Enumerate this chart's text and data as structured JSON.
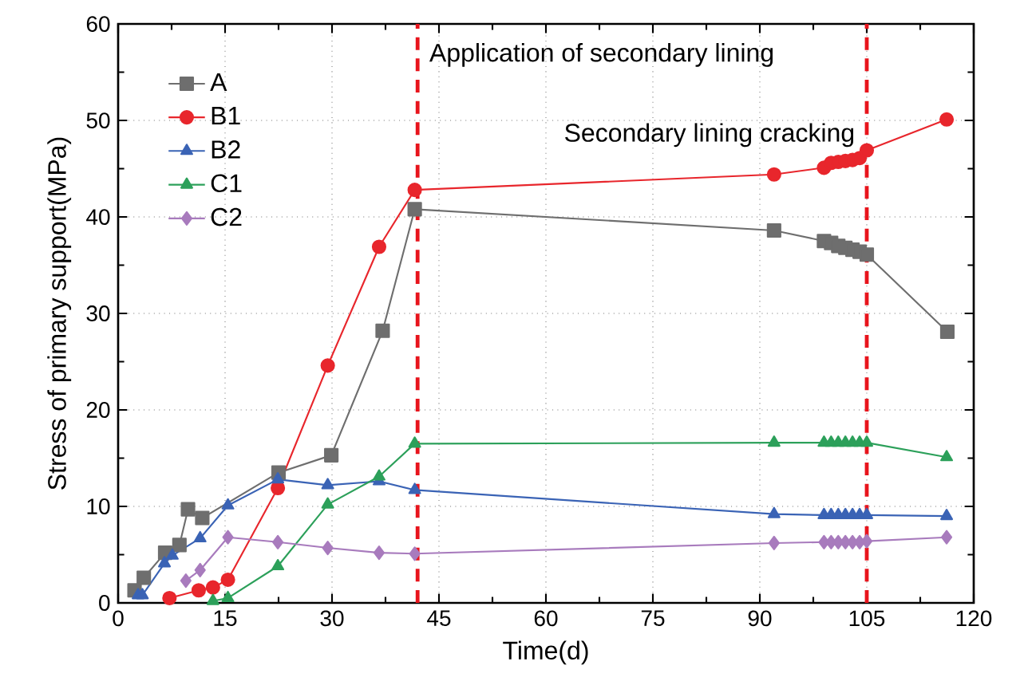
{
  "chart_data": {
    "type": "line",
    "xlabel": "Time(d)",
    "ylabel": "Stress of primary support(MPa)",
    "xlim": [
      0,
      120
    ],
    "xticks": [
      0,
      15,
      30,
      45,
      60,
      75,
      90,
      105,
      120
    ],
    "ylim": [
      0,
      60
    ],
    "yticks": [
      0,
      10,
      20,
      30,
      40,
      50,
      60
    ],
    "grid": true,
    "legend": "top left",
    "line_style": "solid",
    "series": [
      {
        "name": "A",
        "color": "#6e6e6e",
        "marker": "square",
        "x": [
          2.3,
          3.6,
          6.6,
          8.6,
          9.8,
          11.8,
          22.5,
          29.9,
          37.1,
          41.6,
          92,
          99,
          100,
          101,
          102,
          103,
          104,
          105,
          116.3
        ],
        "values": [
          1.3,
          2.6,
          5.2,
          6.0,
          9.7,
          8.8,
          13.5,
          15.3,
          28.2,
          40.8,
          38.6,
          37.5,
          37.3,
          37.0,
          36.8,
          36.6,
          36.4,
          36.1,
          28.1
        ]
      },
      {
        "name": "B1",
        "color": "#e8262c",
        "marker": "circle",
        "x": [
          7.2,
          11.3,
          13.3,
          15.4,
          22.4,
          29.4,
          36.6,
          41.6,
          92,
          99,
          100,
          101,
          102,
          103,
          104,
          105,
          116.2
        ],
        "values": [
          0.5,
          1.3,
          1.6,
          2.4,
          11.9,
          24.6,
          36.9,
          42.8,
          44.4,
          45.1,
          45.6,
          45.7,
          45.8,
          45.9,
          46.1,
          46.9,
          50.1
        ]
      },
      {
        "name": "B2",
        "color": "#3a63b5",
        "marker": "triangle",
        "x": [
          2.8,
          3.4,
          6.5,
          7.6,
          11.5,
          15.4,
          22.4,
          29.4,
          36.6,
          41.6,
          92,
          99,
          100,
          101,
          102,
          103,
          104,
          105,
          116.2
        ],
        "values": [
          0.8,
          0.8,
          4.1,
          4.9,
          6.7,
          10.1,
          12.8,
          12.2,
          12.6,
          11.7,
          9.2,
          9.1,
          9.1,
          9.1,
          9.1,
          9.1,
          9.1,
          9.1,
          9.0
        ]
      },
      {
        "name": "C1",
        "color": "#2ca05a",
        "marker": "triangle",
        "x": [
          13.3,
          15.4,
          22.4,
          29.4,
          36.6,
          41.6,
          92,
          99,
          100,
          101,
          102,
          103,
          104,
          105,
          116.2
        ],
        "values": [
          0.2,
          0.5,
          3.8,
          10.2,
          13.1,
          16.5,
          16.6,
          16.6,
          16.6,
          16.6,
          16.6,
          16.6,
          16.6,
          16.6,
          15.1
        ]
      },
      {
        "name": "C2",
        "color": "#a87bbd",
        "marker": "diamond",
        "x": [
          9.5,
          11.5,
          15.4,
          22.4,
          29.4,
          36.6,
          41.6,
          92,
          99,
          100,
          101,
          102,
          103,
          104,
          105,
          116.2
        ],
        "values": [
          2.3,
          3.4,
          6.8,
          6.3,
          5.7,
          5.2,
          5.1,
          6.2,
          6.3,
          6.3,
          6.3,
          6.3,
          6.3,
          6.3,
          6.4,
          6.8
        ]
      }
    ],
    "ref_lines": [
      {
        "axis": "x",
        "value": 42,
        "label": "Application of secondary lining",
        "color": "#e8141c",
        "line_style": "dashed"
      },
      {
        "axis": "x",
        "value": 105,
        "label": "Secondary lining cracking",
        "color": "#e8141c",
        "line_style": "dashed"
      }
    ]
  }
}
